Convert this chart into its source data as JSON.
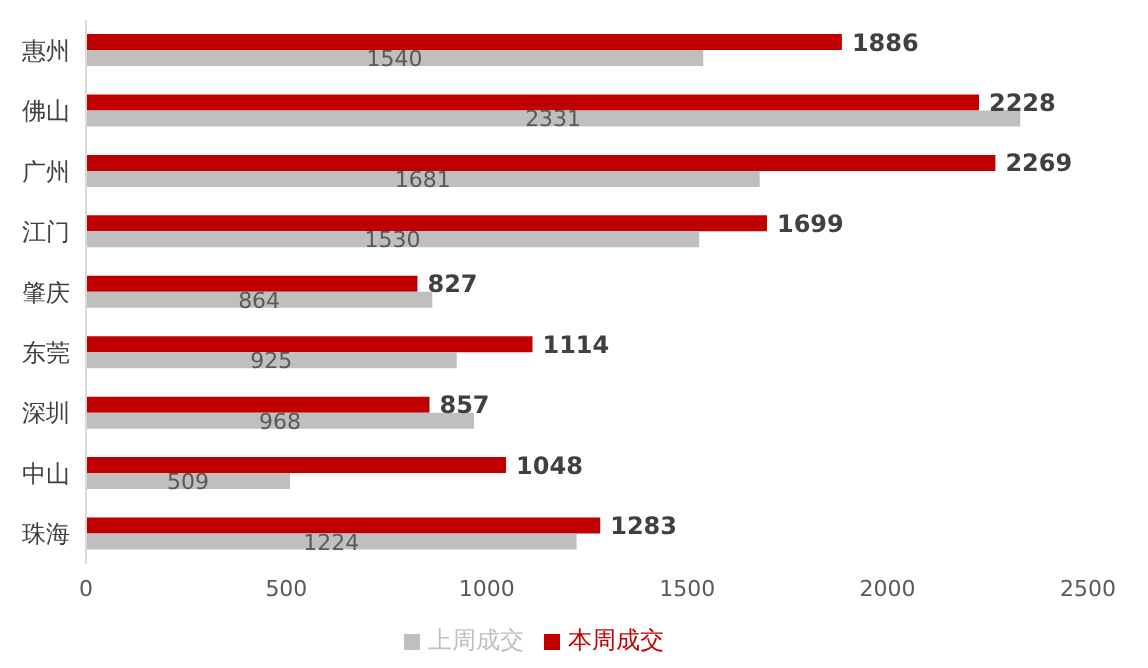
{
  "chart_data": {
    "type": "bar",
    "orientation": "horizontal",
    "categories": [
      "惠州",
      "佛山",
      "广州",
      "江门",
      "肇庆",
      "东莞",
      "深圳",
      "中山",
      "珠海"
    ],
    "series": [
      {
        "name": "本周成交",
        "color": "#c00000",
        "values": [
          1886,
          2228,
          2269,
          1699,
          827,
          1114,
          857,
          1048,
          1283
        ]
      },
      {
        "name": "上周成交",
        "color": "#bfbfbf",
        "values": [
          1540,
          2331,
          1681,
          1530,
          864,
          925,
          968,
          509,
          1224
        ]
      }
    ],
    "xlim": [
      0,
      2500
    ],
    "xticks": [
      0,
      500,
      1000,
      1500,
      2000,
      2500
    ],
    "data_labels": true,
    "legend": "bottom",
    "grid": false
  }
}
